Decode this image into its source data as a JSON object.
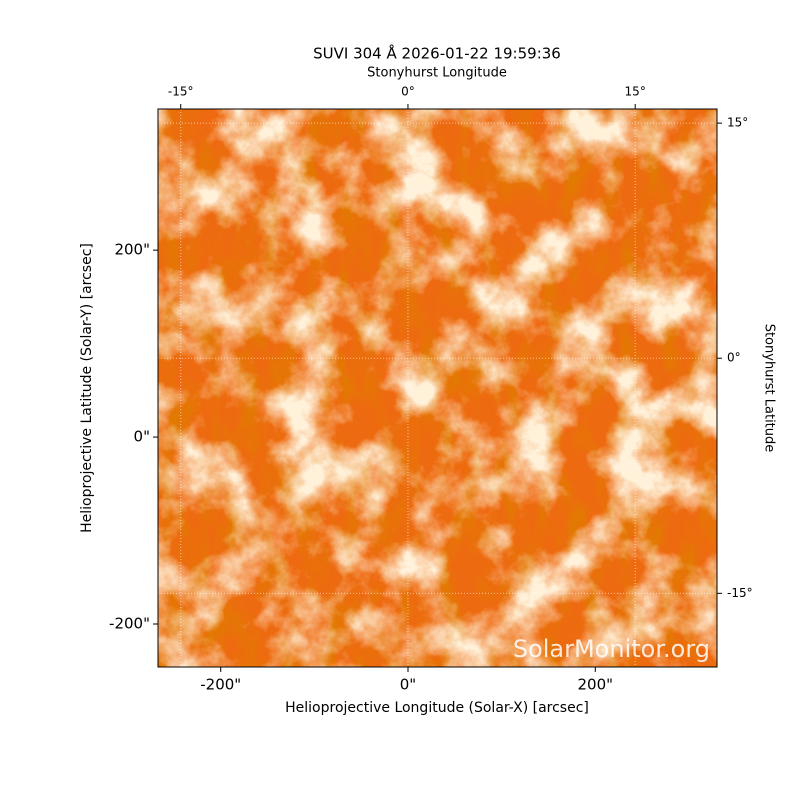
{
  "chart_data": {
    "type": "image",
    "title": "SUVI 304 Å 2026-01-22 19:59:36",
    "xlabel": "Helioprojective Longitude (Solar-X) [arcsec]",
    "ylabel": "Helioprojective Latitude (Solar-Y) [arcsec]",
    "x2label": "Stonyhurst Longitude",
    "y2label": "Stonyhurst Latitude",
    "annotation": "SolarMonitor.org",
    "xlim": [
      -267,
      330
    ],
    "ylim": [
      -246,
      351
    ],
    "xticks": [
      {
        "value": -200,
        "label": "-200\""
      },
      {
        "value": 0,
        "label": "0\""
      },
      {
        "value": 200,
        "label": "200\""
      }
    ],
    "yticks": [
      {
        "value": -200,
        "label": "-200\""
      },
      {
        "value": 0,
        "label": "0\""
      },
      {
        "value": 200,
        "label": "200\""
      }
    ],
    "x2lim": [
      -16.5,
      20.4
    ],
    "x2ticks": [
      {
        "value": -15,
        "label": "-15°"
      },
      {
        "value": 0,
        "label": "0°"
      },
      {
        "value": 15,
        "label": "15°"
      }
    ],
    "y2lim": [
      -19.7,
      15.9
    ],
    "y2ticks": [
      {
        "value": -15,
        "label": "-15°"
      },
      {
        "value": 0,
        "label": "0°"
      },
      {
        "value": 15,
        "label": "15°"
      }
    ],
    "grid": true
  }
}
